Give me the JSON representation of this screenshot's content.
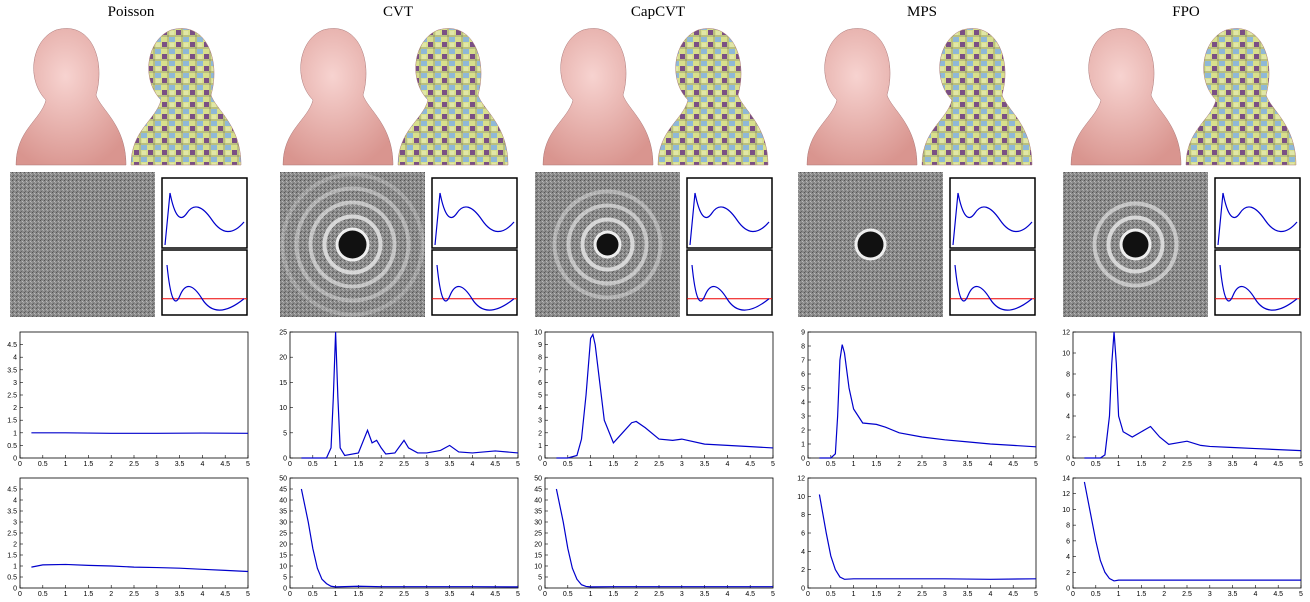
{
  "column_titles": [
    "Poisson",
    "CVT",
    "CapCVT",
    "MPS",
    "FPO"
  ],
  "chart_data": [
    {
      "type": "line",
      "x": [
        0.25,
        1,
        2,
        3,
        4,
        5
      ],
      "series": [
        {
          "color": "#0000cc",
          "values": [
            1,
            1,
            0.98,
            0.98,
            0.99,
            0.98
          ]
        }
      ],
      "xlim": [
        0,
        5
      ],
      "xticks": [
        0,
        0.5,
        1,
        1.5,
        2,
        2.5,
        3,
        3.5,
        4,
        4.5,
        5
      ],
      "ylim": [
        0,
        5
      ],
      "yticks": [
        0,
        0.5,
        1,
        1.5,
        2,
        2.5,
        3,
        3.5,
        4,
        4.5
      ]
    },
    {
      "type": "line",
      "x": [
        0.25,
        0.5,
        1,
        1.5,
        2,
        2.5,
        3,
        3.5,
        4,
        4.5,
        5
      ],
      "series": [
        {
          "color": "#0000cc",
          "values": [
            0.95,
            1.05,
            1.07,
            1.03,
            1,
            0.95,
            0.93,
            0.9,
            0.85,
            0.8,
            0.75
          ]
        }
      ],
      "xlim": [
        0,
        5
      ],
      "xticks": [
        0,
        0.5,
        1,
        1.5,
        2,
        2.5,
        3,
        3.5,
        4,
        4.5,
        5
      ],
      "ylim": [
        0,
        5
      ],
      "yticks": [
        0,
        0.5,
        1,
        1.5,
        2,
        2.5,
        3,
        3.5,
        4,
        4.5
      ]
    },
    {
      "type": "line",
      "x": [
        0.25,
        0.8,
        0.9,
        0.95,
        1,
        1.05,
        1.1,
        1.2,
        1.5,
        1.7,
        1.8,
        1.9,
        2,
        2.1,
        2.3,
        2.5,
        2.6,
        2.8,
        3,
        3.3,
        3.5,
        3.7,
        4,
        4.5,
        5
      ],
      "series": [
        {
          "color": "#0000cc",
          "values": [
            0,
            0,
            2,
            12,
            25,
            12,
            2,
            0.5,
            1,
            5.5,
            3,
            3.5,
            2,
            0.8,
            1,
            3.5,
            2,
            1,
            1,
            1.5,
            2.5,
            1.2,
            1,
            1.4,
            1
          ]
        }
      ],
      "xlim": [
        0,
        5
      ],
      "xticks": [
        0,
        0.5,
        1,
        1.5,
        2,
        2.5,
        3,
        3.5,
        4,
        4.5,
        5
      ],
      "ylim": [
        0,
        25
      ],
      "yticks": [
        0,
        5,
        10,
        15,
        20,
        25
      ]
    },
    {
      "type": "line",
      "x": [
        0.25,
        0.4,
        0.5,
        0.6,
        0.7,
        0.8,
        0.9,
        1,
        1.5,
        2,
        3,
        4,
        5
      ],
      "series": [
        {
          "color": "#0000cc",
          "values": [
            45,
            30,
            18,
            9,
            4,
            2,
            0.8,
            0.5,
            0.8,
            0.6,
            0.6,
            0.6,
            0.5
          ]
        }
      ],
      "xlim": [
        0,
        5
      ],
      "xticks": [
        0,
        0.5,
        1,
        1.5,
        2,
        2.5,
        3,
        3.5,
        4,
        4.5,
        5
      ],
      "ylim": [
        0,
        50
      ],
      "yticks": [
        0,
        5,
        10,
        15,
        20,
        25,
        30,
        35,
        40,
        45,
        50
      ]
    },
    {
      "type": "line",
      "x": [
        0.25,
        0.5,
        0.7,
        0.8,
        0.9,
        1,
        1.05,
        1.1,
        1.2,
        1.3,
        1.5,
        1.7,
        1.9,
        2,
        2.2,
        2.5,
        2.8,
        3,
        3.5,
        4,
        4.5,
        5
      ],
      "series": [
        {
          "color": "#0000cc",
          "values": [
            0,
            0,
            0.2,
            1.5,
            5,
            9.5,
            9.8,
            9,
            6,
            3,
            1.2,
            2,
            2.8,
            2.9,
            2.4,
            1.5,
            1.4,
            1.5,
            1.1,
            1,
            0.9,
            0.8
          ]
        }
      ],
      "xlim": [
        0,
        5
      ],
      "xticks": [
        0,
        0.5,
        1,
        1.5,
        2,
        2.5,
        3,
        3.5,
        4,
        4.5,
        5
      ],
      "ylim": [
        0,
        10
      ],
      "yticks": [
        0,
        1,
        2,
        3,
        4,
        5,
        6,
        7,
        8,
        9,
        10
      ]
    },
    {
      "type": "line",
      "x": [
        0.25,
        0.4,
        0.5,
        0.6,
        0.7,
        0.8,
        0.9,
        1,
        1.5,
        2,
        3,
        4,
        5
      ],
      "series": [
        {
          "color": "#0000cc",
          "values": [
            45,
            30,
            18,
            9,
            4,
            1.5,
            0.7,
            0.5,
            0.6,
            0.6,
            0.6,
            0.6,
            0.6
          ]
        }
      ],
      "xlim": [
        0,
        5
      ],
      "xticks": [
        0,
        0.5,
        1,
        1.5,
        2,
        2.5,
        3,
        3.5,
        4,
        4.5,
        5
      ],
      "ylim": [
        0,
        50
      ],
      "yticks": [
        0,
        5,
        10,
        15,
        20,
        25,
        30,
        35,
        40,
        45,
        50
      ]
    },
    {
      "type": "line",
      "x": [
        0.25,
        0.5,
        0.6,
        0.65,
        0.7,
        0.75,
        0.8,
        0.9,
        1,
        1.2,
        1.5,
        1.7,
        2,
        2.5,
        3,
        3.5,
        4,
        4.5,
        5
      ],
      "series": [
        {
          "color": "#0000cc",
          "values": [
            0,
            0,
            0.3,
            3,
            7,
            8.1,
            7.5,
            5,
            3.5,
            2.5,
            2.4,
            2.2,
            1.8,
            1.5,
            1.3,
            1.15,
            1,
            0.9,
            0.8
          ]
        }
      ],
      "xlim": [
        0,
        5
      ],
      "xticks": [
        0,
        0.5,
        1,
        1.5,
        2,
        2.5,
        3,
        3.5,
        4,
        4.5,
        5
      ],
      "ylim": [
        0,
        9
      ],
      "yticks": [
        0,
        1,
        2,
        3,
        4,
        5,
        6,
        7,
        8,
        9
      ]
    },
    {
      "type": "line",
      "x": [
        0.25,
        0.4,
        0.5,
        0.6,
        0.7,
        0.8,
        1,
        1.5,
        2,
        3,
        4,
        5
      ],
      "series": [
        {
          "color": "#0000cc",
          "values": [
            10.2,
            6,
            3.5,
            2,
            1.2,
            0.95,
            1,
            1,
            1,
            1,
            0.95,
            1
          ]
        }
      ],
      "xlim": [
        0,
        5
      ],
      "xticks": [
        0,
        0.5,
        1,
        1.5,
        2,
        2.5,
        3,
        3.5,
        4,
        4.5,
        5
      ],
      "ylim": [
        0,
        12
      ],
      "yticks": [
        0,
        2,
        4,
        6,
        8,
        10,
        12
      ]
    },
    {
      "type": "line",
      "x": [
        0.25,
        0.6,
        0.7,
        0.8,
        0.85,
        0.9,
        0.95,
        1,
        1.1,
        1.3,
        1.5,
        1.7,
        1.9,
        2.1,
        2.5,
        2.8,
        3,
        3.5,
        4,
        4.5,
        5
      ],
      "series": [
        {
          "color": "#0000cc",
          "values": [
            0,
            0,
            0.3,
            4,
            9,
            12,
            9,
            4,
            2.5,
            2,
            2.5,
            3,
            2,
            1.3,
            1.6,
            1.2,
            1.1,
            1,
            0.9,
            0.8,
            0.7
          ]
        }
      ],
      "xlim": [
        0,
        5
      ],
      "xticks": [
        0,
        0.5,
        1,
        1.5,
        2,
        2.5,
        3,
        3.5,
        4,
        4.5,
        5
      ],
      "ylim": [
        0,
        12
      ],
      "yticks": [
        0,
        2,
        4,
        6,
        8,
        10,
        12
      ]
    },
    {
      "type": "line",
      "x": [
        0.25,
        0.4,
        0.5,
        0.6,
        0.7,
        0.8,
        0.9,
        1,
        1.5,
        2,
        3,
        4,
        5
      ],
      "series": [
        {
          "color": "#0000cc",
          "values": [
            13.5,
            9,
            6,
            3.5,
            2,
            1.2,
            0.9,
            1,
            1,
            1,
            1,
            1,
            1
          ]
        }
      ],
      "xlim": [
        0,
        5
      ],
      "xticks": [
        0,
        0.5,
        1,
        1.5,
        2,
        2.5,
        3,
        3.5,
        4,
        4.5,
        5
      ],
      "ylim": [
        0,
        14
      ],
      "yticks": [
        0,
        2,
        4,
        6,
        8,
        10,
        12,
        14
      ]
    }
  ]
}
